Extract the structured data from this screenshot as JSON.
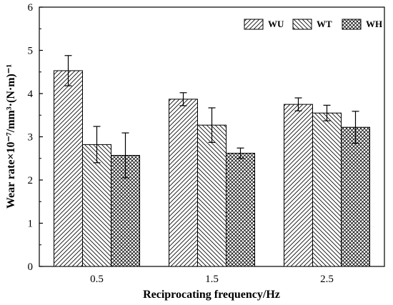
{
  "chart_data": {
    "type": "bar",
    "title": "",
    "xlabel": "Reciprocating frequency/Hz",
    "ylabel": "Wear rate×10⁻⁷/mm³·(N·m)⁻¹",
    "categories": [
      "0.5",
      "1.5",
      "2.5"
    ],
    "ylim": [
      0,
      6
    ],
    "yticks": [
      "0",
      "1",
      "2",
      "3",
      "4",
      "5",
      "6"
    ],
    "grid": false,
    "legend_position": "top-right",
    "series": [
      {
        "name": "WU",
        "values": [
          4.53,
          3.87,
          3.75
        ],
        "errors": [
          0.35,
          0.15,
          0.15
        ],
        "pattern": "diag-up"
      },
      {
        "name": "WT",
        "values": [
          2.82,
          3.27,
          3.55
        ],
        "errors": [
          0.42,
          0.4,
          0.18
        ],
        "pattern": "diag-down"
      },
      {
        "name": "WH",
        "values": [
          2.57,
          2.62,
          3.22
        ],
        "errors": [
          0.52,
          0.12,
          0.37
        ],
        "pattern": "crosshatch"
      }
    ]
  }
}
